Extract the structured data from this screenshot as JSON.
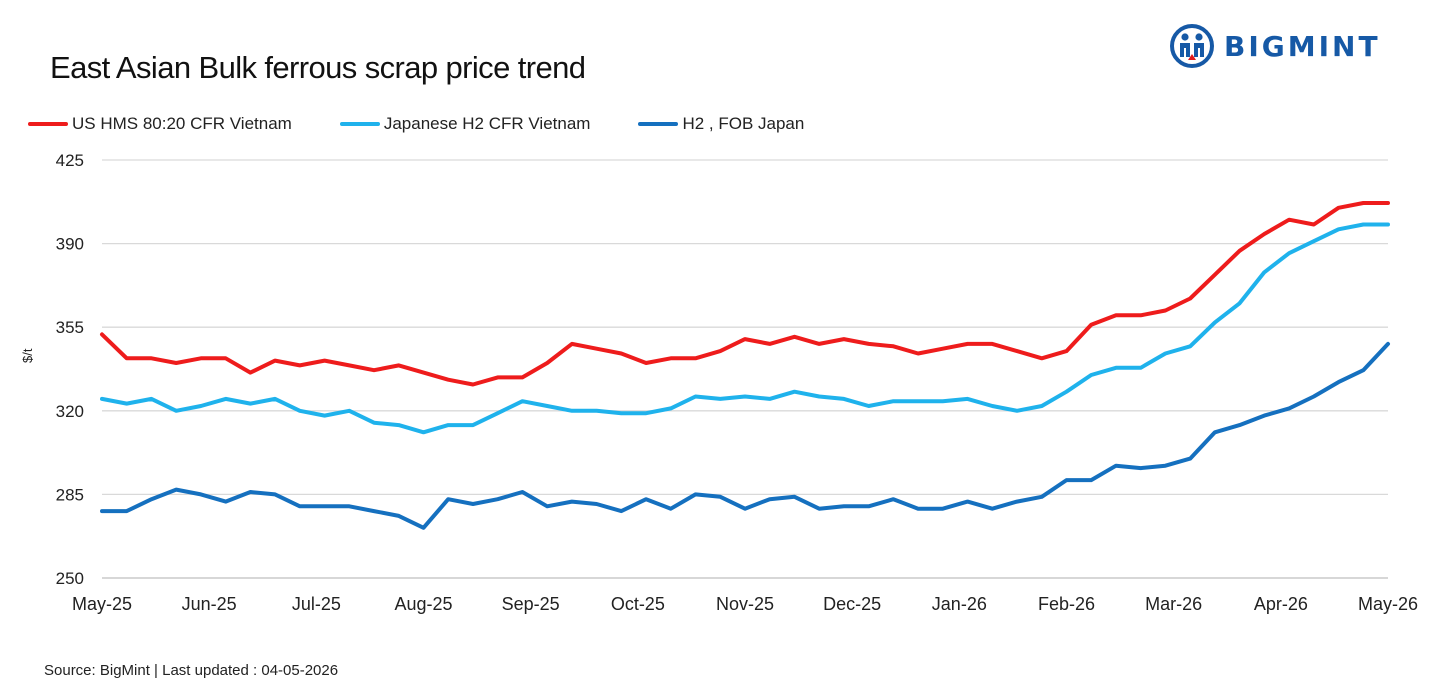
{
  "header": {
    "title": "East Asian Bulk ferrous scrap price trend",
    "brand": "BIGMINT"
  },
  "footer": {
    "source": "Source: BigMint  | Last updated : 04-05-2026"
  },
  "chart_data": {
    "type": "line",
    "title": "East Asian Bulk ferrous scrap price trend",
    "ylabel": "$/t",
    "xlabel": "",
    "ylim": [
      250,
      425
    ],
    "yticks": [
      250,
      285,
      320,
      355,
      390,
      425
    ],
    "x_tick_labels": [
      "May-25",
      "Jun-25",
      "Jul-25",
      "Aug-25",
      "Sep-25",
      "Oct-25",
      "Nov-25",
      "Dec-25",
      "Jan-26",
      "Feb-26",
      "Mar-26",
      "Apr-26",
      "May-26"
    ],
    "grid": true,
    "legend_position": "top-left",
    "series": [
      {
        "name": "US HMS 80:20 CFR Vietnam",
        "color": "#ee1c1c",
        "values": [
          352,
          342,
          342,
          340,
          342,
          342,
          336,
          341,
          339,
          341,
          339,
          337,
          339,
          336,
          333,
          331,
          334,
          334,
          340,
          348,
          346,
          344,
          340,
          342,
          342,
          345,
          350,
          348,
          351,
          348,
          350,
          348,
          347,
          344,
          346,
          348,
          348,
          345,
          342,
          345,
          356,
          360,
          360,
          362,
          367,
          377,
          387,
          394,
          400,
          398,
          405,
          407,
          407
        ]
      },
      {
        "name": "Japanese H2 CFR Vietnam",
        "color": "#1fb2ec",
        "values": [
          325,
          323,
          325,
          320,
          322,
          325,
          323,
          325,
          320,
          318,
          320,
          315,
          314,
          311,
          314,
          314,
          319,
          324,
          322,
          320,
          320,
          319,
          319,
          321,
          326,
          325,
          326,
          325,
          328,
          326,
          325,
          322,
          324,
          324,
          324,
          325,
          322,
          320,
          322,
          328,
          335,
          338,
          338,
          344,
          347,
          357,
          365,
          378,
          386,
          391,
          396,
          398,
          398
        ]
      },
      {
        "name": "H2 , FOB Japan",
        "color": "#1570bf",
        "values": [
          278,
          278,
          283,
          287,
          285,
          282,
          286,
          285,
          280,
          280,
          280,
          278,
          276,
          271,
          283,
          281,
          283,
          286,
          280,
          282,
          281,
          278,
          283,
          279,
          285,
          284,
          279,
          283,
          284,
          279,
          280,
          280,
          283,
          279,
          279,
          282,
          279,
          282,
          284,
          291,
          291,
          297,
          296,
          297,
          300,
          311,
          314,
          318,
          321,
          326,
          332,
          337,
          348
        ]
      }
    ]
  }
}
